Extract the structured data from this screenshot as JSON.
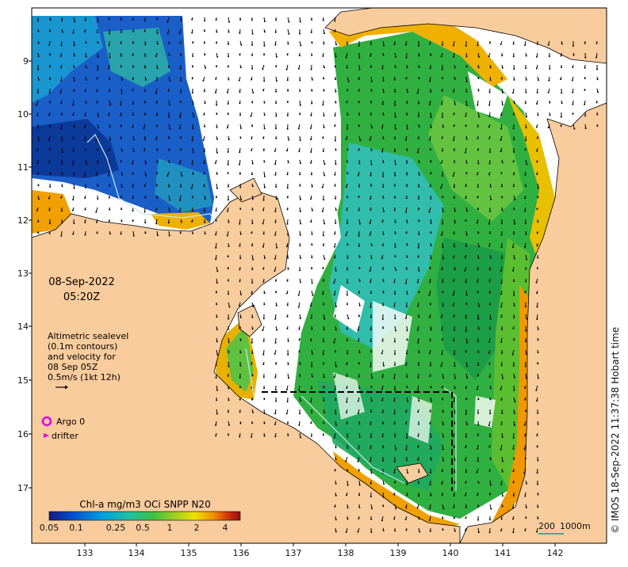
{
  "map": {
    "date": "08-Sep-2022",
    "time": "05:20Z",
    "legend": {
      "line1": "Altimetric sealevel",
      "line2": "(0.1m contours)",
      "line3": "and velocity for",
      "line4": "08 Sep 05Z",
      "line5": "0.5m/s (1kt 12h)"
    },
    "markers": {
      "argo_label": "Argo 0",
      "drifter_label": "drifter",
      "argo_color": "#e000e0",
      "drifter_color": "#e000e0"
    },
    "colorbar": {
      "title": "Chl-a mg/m3 OCi SNPP N20",
      "ticks": [
        "0.05",
        "0.1",
        "0.25",
        "0.5",
        "1",
        "2",
        "4"
      ]
    },
    "scale": {
      "label_km": "200",
      "label_depth": "1000m",
      "color": "#00a0a0"
    },
    "credit": "© IMOS 18-Sep-2022 11:37:38 Hobart time",
    "axes": {
      "lon_ticks": [
        "133",
        "134",
        "135",
        "136",
        "137",
        "138",
        "139",
        "140",
        "141",
        "142"
      ],
      "lat_ticks": [
        "9",
        "10",
        "11",
        "12",
        "13",
        "14",
        "15",
        "16",
        "17"
      ]
    },
    "colors": {
      "land": "#f9cc9d",
      "ocean_no_data": "#ffffff",
      "chl_low": "#1060c0",
      "chl_mid": "#40b040",
      "chl_high": "#f0a000"
    }
  }
}
